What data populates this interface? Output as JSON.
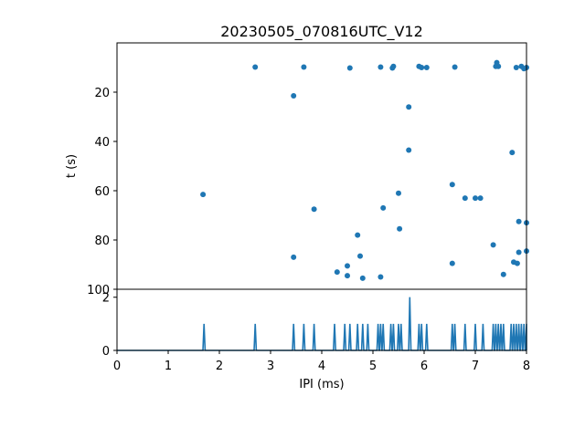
{
  "chart_data": [
    {
      "type": "scatter",
      "title": "20230505_070816UTC_V12",
      "xlabel": "",
      "ylabel": "t (s)",
      "xlim": [
        0,
        8
      ],
      "ylim": [
        100,
        0
      ],
      "y_inverted": true,
      "yticks": [
        20,
        40,
        60,
        80,
        100
      ],
      "grid": false,
      "color": "#1f77b4",
      "points": [
        [
          2.7,
          9.8
        ],
        [
          3.65,
          9.8
        ],
        [
          4.55,
          10.2
        ],
        [
          5.15,
          9.8
        ],
        [
          5.38,
          10.2
        ],
        [
          5.4,
          9.5
        ],
        [
          5.9,
          9.5
        ],
        [
          5.95,
          10.0
        ],
        [
          6.05,
          10.0
        ],
        [
          6.6,
          9.8
        ],
        [
          7.42,
          8.0
        ],
        [
          7.4,
          9.5
        ],
        [
          7.45,
          9.5
        ],
        [
          7.8,
          10.0
        ],
        [
          7.9,
          9.5
        ],
        [
          7.95,
          10.5
        ],
        [
          8.0,
          10.0
        ],
        [
          3.45,
          21.5
        ],
        [
          5.7,
          26.0
        ],
        [
          5.7,
          43.5
        ],
        [
          7.72,
          44.5
        ],
        [
          1.68,
          61.5
        ],
        [
          3.85,
          67.5
        ],
        [
          5.2,
          67.0
        ],
        [
          5.5,
          61.0
        ],
        [
          5.52,
          75.5
        ],
        [
          6.55,
          57.5
        ],
        [
          6.8,
          63.0
        ],
        [
          7.0,
          63.0
        ],
        [
          7.1,
          63.0
        ],
        [
          4.7,
          78.0
        ],
        [
          7.35,
          82.0
        ],
        [
          7.85,
          72.5
        ],
        [
          8.0,
          73.0
        ],
        [
          3.45,
          87.0
        ],
        [
          4.75,
          86.5
        ],
        [
          4.5,
          90.5
        ],
        [
          6.55,
          89.5
        ],
        [
          7.75,
          89.0
        ],
        [
          7.82,
          89.5
        ],
        [
          7.85,
          85.0
        ],
        [
          8.0,
          84.5
        ],
        [
          4.3,
          93.0
        ],
        [
          4.5,
          94.5
        ],
        [
          4.8,
          95.5
        ],
        [
          5.15,
          95.0
        ],
        [
          7.55,
          94.0
        ]
      ]
    },
    {
      "type": "line",
      "title": "",
      "xlabel": "IPI (ms)",
      "ylabel": "",
      "xlim": [
        0,
        8
      ],
      "ylim": [
        0,
        2.3
      ],
      "xticks": [
        "0",
        "1",
        "2",
        "3",
        "4",
        "5",
        "6",
        "7",
        "8"
      ],
      "yticks": [
        "0",
        "2"
      ],
      "grid": false,
      "color": "#1f77b4",
      "spikes": [
        {
          "x": 1.7,
          "v": 1
        },
        {
          "x": 2.7,
          "v": 1
        },
        {
          "x": 3.45,
          "v": 1
        },
        {
          "x": 3.65,
          "v": 1
        },
        {
          "x": 3.85,
          "v": 1
        },
        {
          "x": 4.25,
          "v": 1
        },
        {
          "x": 4.45,
          "v": 1
        },
        {
          "x": 4.55,
          "v": 1
        },
        {
          "x": 4.7,
          "v": 1
        },
        {
          "x": 4.8,
          "v": 1
        },
        {
          "x": 4.9,
          "v": 1
        },
        {
          "x": 5.1,
          "v": 1
        },
        {
          "x": 5.15,
          "v": 1
        },
        {
          "x": 5.2,
          "v": 1
        },
        {
          "x": 5.35,
          "v": 1
        },
        {
          "x": 5.4,
          "v": 1
        },
        {
          "x": 5.5,
          "v": 1
        },
        {
          "x": 5.55,
          "v": 1
        },
        {
          "x": 5.72,
          "v": 2
        },
        {
          "x": 5.9,
          "v": 1
        },
        {
          "x": 5.95,
          "v": 1
        },
        {
          "x": 6.05,
          "v": 1
        },
        {
          "x": 6.55,
          "v": 1
        },
        {
          "x": 6.6,
          "v": 1
        },
        {
          "x": 6.8,
          "v": 1
        },
        {
          "x": 7.0,
          "v": 1
        },
        {
          "x": 7.15,
          "v": 1
        },
        {
          "x": 7.35,
          "v": 1
        },
        {
          "x": 7.4,
          "v": 1
        },
        {
          "x": 7.45,
          "v": 1
        },
        {
          "x": 7.5,
          "v": 1
        },
        {
          "x": 7.55,
          "v": 1
        },
        {
          "x": 7.7,
          "v": 1
        },
        {
          "x": 7.75,
          "v": 1
        },
        {
          "x": 7.8,
          "v": 1
        },
        {
          "x": 7.85,
          "v": 1
        },
        {
          "x": 7.9,
          "v": 1
        },
        {
          "x": 7.95,
          "v": 1
        },
        {
          "x": 8.0,
          "v": 1
        }
      ]
    }
  ]
}
